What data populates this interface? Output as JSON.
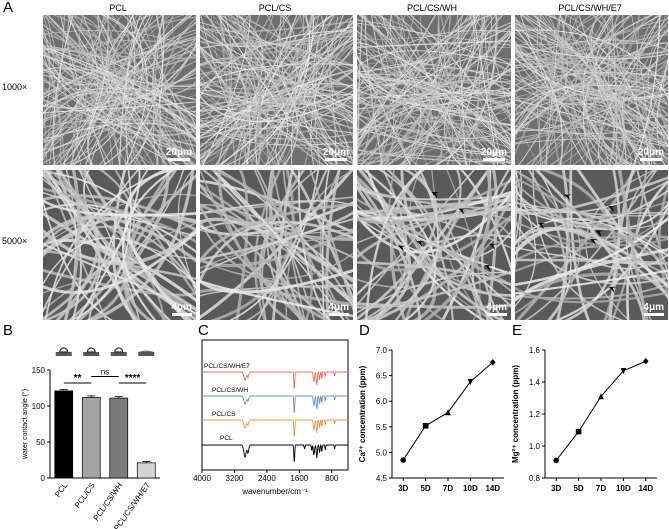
{
  "panels": {
    "A": "A",
    "B": "B",
    "C": "C",
    "D": "D",
    "E": "E"
  },
  "sem": {
    "columns": [
      "PCL",
      "PCL/CS",
      "PCL/CS/WH",
      "PCL/CS/WH/E7"
    ],
    "rows": [
      "1000×",
      "5000×"
    ],
    "scale_top": "20μm",
    "scale_bottom": "4μm"
  },
  "chart_data": [
    {
      "type": "bar",
      "panel": "B",
      "categories": [
        "PCL",
        "PCL/CS",
        "PCL/CS/WH",
        "PCL/CS/WH/E7"
      ],
      "values": [
        121,
        112,
        111,
        21
      ],
      "errors": [
        2,
        2,
        2,
        2
      ],
      "colors": [
        "#000000",
        "#a3a3a3",
        "#7a7a7a",
        "#d3d3d3"
      ],
      "ylabel": "water contact angle (°)",
      "ylim": [
        0,
        150
      ],
      "yticks": [
        0,
        50,
        100,
        150
      ],
      "significance": [
        {
          "from": 0,
          "to": 1,
          "label": "**"
        },
        {
          "from": 1,
          "to": 2,
          "label": "ns"
        },
        {
          "from": 2,
          "to": 3,
          "label": "****"
        }
      ]
    },
    {
      "type": "line",
      "panel": "C",
      "xlabel": "wavenumber/cm⁻¹",
      "xticks": [
        4000,
        3200,
        2400,
        1600,
        800
      ],
      "xlim": [
        4000,
        400
      ],
      "series": [
        {
          "name": "PCL",
          "color": "#000000"
        },
        {
          "name": "PCL/CS",
          "color": "#e8944a"
        },
        {
          "name": "PCL/CS/WH",
          "color": "#6c8fd0"
        },
        {
          "name": "PCL/CS/WH/E7",
          "color": "#e0725c"
        }
      ]
    },
    {
      "type": "line",
      "panel": "D",
      "categories": [
        "3D",
        "5D",
        "7D",
        "10D",
        "14D"
      ],
      "values": [
        4.85,
        5.52,
        5.78,
        6.38,
        6.76
      ],
      "markers": [
        "circle",
        "square",
        "triangle-up",
        "triangle-down",
        "diamond"
      ],
      "ylabel": "Ca²⁺ concentration (ppm)",
      "ylim": [
        4.5,
        7.0
      ],
      "yticks": [
        "4.5",
        "5.0",
        "5.5",
        "6.0",
        "6.5",
        "7.0"
      ]
    },
    {
      "type": "line",
      "panel": "E",
      "categories": [
        "3D",
        "5D",
        "7D",
        "10D",
        "14D"
      ],
      "values": [
        0.91,
        1.09,
        1.31,
        1.47,
        1.53
      ],
      "markers": [
        "circle",
        "square",
        "triangle-up",
        "triangle-down",
        "diamond"
      ],
      "ylabel": "Mg²⁺ concentration (ppm)",
      "ylim": [
        0.8,
        1.6
      ],
      "yticks": [
        "0.8",
        "1.0",
        "1.2",
        "1.4",
        "1.6"
      ]
    }
  ]
}
